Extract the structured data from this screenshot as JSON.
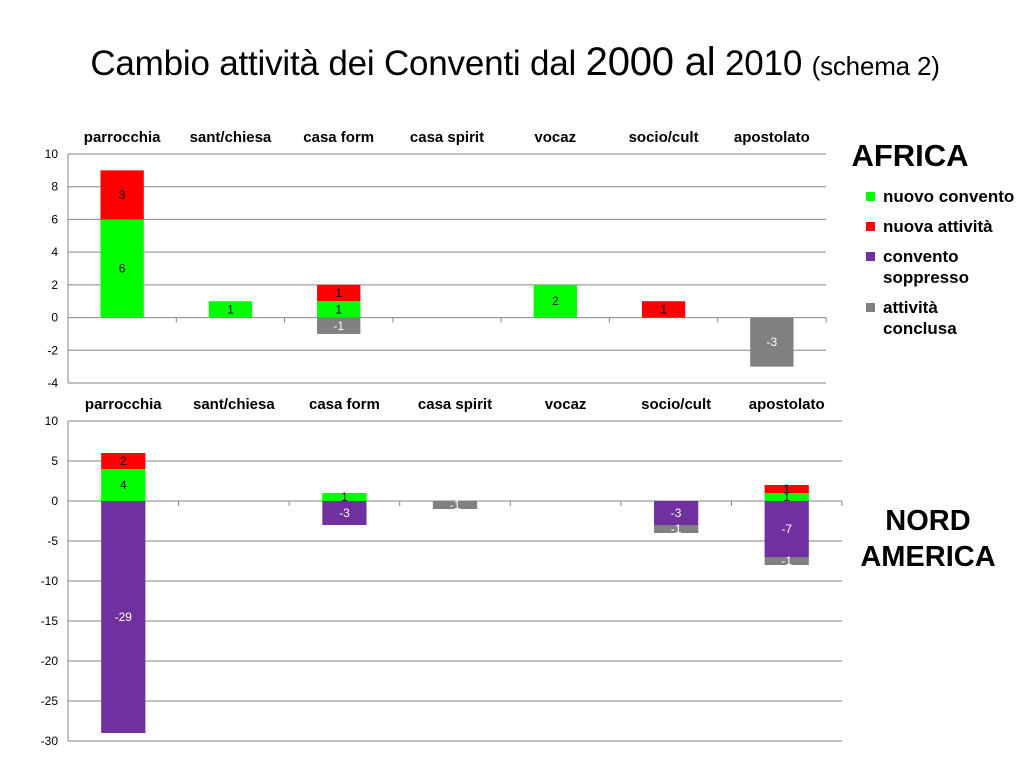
{
  "title": {
    "part1": "Cambio attività dei Conventi dal ",
    "part2": "2000 al",
    "part3": " 2010 ",
    "part4": "(schema 2)"
  },
  "legend": [
    {
      "name": "nuovo convento",
      "color": "#00ff00"
    },
    {
      "name": "nuova attività",
      "color": "#ff0000"
    },
    {
      "name": "convento soppresso",
      "color": "#7030a0"
    },
    {
      "name": "attività conclusa",
      "color": "#808080"
    }
  ],
  "chart_data": [
    {
      "type": "bar",
      "stacked": true,
      "region": "AFRICA",
      "categories": [
        "parrocchia",
        "sant/chiesa",
        "casa form",
        "casa spirit",
        "vocaz",
        "socio/cult",
        "apostolato"
      ],
      "ylim": [
        -4,
        10
      ],
      "yticks": [
        -4,
        -2,
        0,
        2,
        4,
        6,
        8,
        10
      ],
      "series": [
        {
          "name": "nuovo convento",
          "color": "#00ff00",
          "values": [
            6,
            1,
            1,
            0,
            2,
            0,
            0
          ]
        },
        {
          "name": "nuova attività",
          "color": "#ff0000",
          "values": [
            3,
            0,
            1,
            0,
            0,
            1,
            0
          ]
        },
        {
          "name": "convento soppresso",
          "color": "#7030a0",
          "values": [
            0,
            0,
            0,
            0,
            0,
            0,
            0
          ]
        },
        {
          "name": "attività conclusa",
          "color": "#808080",
          "values": [
            0,
            0,
            -1,
            0,
            0,
            0,
            -3
          ]
        }
      ],
      "grid": true,
      "legend_position": "right"
    },
    {
      "type": "bar",
      "stacked": true,
      "region": "NORD AMERICA",
      "categories": [
        "parrocchia",
        "sant/chiesa",
        "casa form",
        "casa spirit",
        "vocaz",
        "socio/cult",
        "apostolato"
      ],
      "ylim": [
        -30,
        10
      ],
      "yticks": [
        -30,
        -25,
        -20,
        -15,
        -10,
        -5,
        0,
        5,
        10
      ],
      "series": [
        {
          "name": "nuovo convento",
          "color": "#00ff00",
          "values": [
            4,
            0,
            1,
            0,
            0,
            0,
            1
          ]
        },
        {
          "name": "nuova attività",
          "color": "#ff0000",
          "values": [
            2,
            0,
            0,
            0,
            0,
            0,
            1
          ]
        },
        {
          "name": "convento soppresso",
          "color": "#7030a0",
          "values": [
            -29,
            0,
            -3,
            0,
            0,
            -3,
            -7
          ]
        },
        {
          "name": "attività conclusa",
          "color": "#808080",
          "values": [
            0,
            0,
            0,
            -1,
            0,
            -1,
            -1
          ]
        }
      ],
      "grid": true,
      "legend_position": "right"
    }
  ]
}
